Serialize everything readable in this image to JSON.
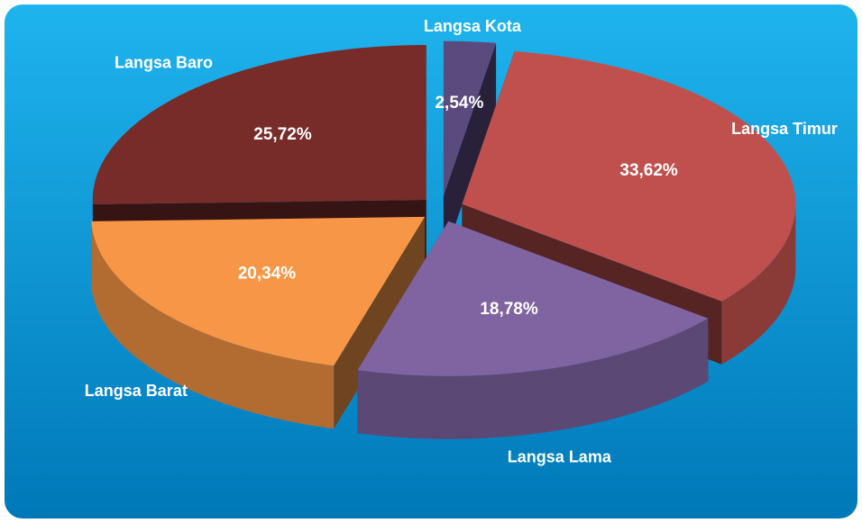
{
  "chart_data": {
    "type": "pie3d",
    "categories": [
      "Langsa Kota",
      "Langsa Timur",
      "Langsa Lama",
      "Langsa Barat",
      "Langsa Baro"
    ],
    "values": [
      2.54,
      33.62,
      18.78,
      20.34,
      25.72
    ],
    "value_labels": [
      "2,54%",
      "33,62%",
      "18,78%",
      "20,34%",
      "25,72%"
    ],
    "colors": [
      "#5b4a7e",
      "#c0504d",
      "#8064a2",
      "#f79646",
      "#772c2a"
    ]
  }
}
